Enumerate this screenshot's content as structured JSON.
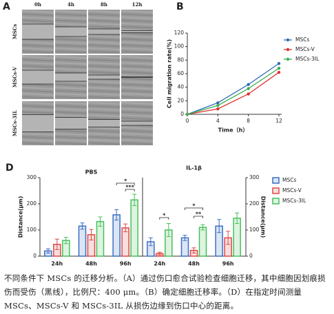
{
  "panel_a": {
    "letter": "A",
    "columns": [
      "0h",
      "4h",
      "8h",
      "12h"
    ],
    "rows": [
      "MSCs",
      "MSCs-V",
      "MSCs-3IL"
    ]
  },
  "chart_data": [
    {
      "type": "line",
      "letter": "B",
      "x_label": "Time（h）",
      "y_label": "Cell migration rate(%)",
      "x": [
        0,
        4,
        8,
        12
      ],
      "xlim": [
        0,
        12
      ],
      "xticks": [
        0,
        4,
        8,
        12
      ],
      "ylim": [
        0,
        120
      ],
      "yticks": [
        0,
        20,
        40,
        60,
        80,
        100,
        120
      ],
      "series": [
        {
          "name": "MSCs",
          "color": "#2f6db5",
          "values": [
            0,
            17,
            44,
            75
          ]
        },
        {
          "name": "MSCs-V",
          "color": "#e03030",
          "values": [
            0,
            8,
            30,
            62
          ]
        },
        {
          "name": "MSCs-3IL",
          "color": "#3cb050",
          "values": [
            0,
            13,
            38,
            68
          ]
        }
      ]
    },
    {
      "type": "grouped-bar",
      "letter": "D",
      "y_label": "Distance(μm)",
      "y2_label": "Distance(μm)",
      "ylim": [
        0,
        300
      ],
      "yticks": [
        0,
        100,
        200,
        300
      ],
      "y2lim": [
        0,
        300
      ],
      "y2ticks": [
        0,
        100,
        200,
        300
      ],
      "categories": [
        "24h",
        "48h",
        "96h"
      ],
      "series": [
        {
          "name": "MSCs",
          "color": "#3a6fc4"
        },
        {
          "name": "MSCs-V",
          "color": "#e04848"
        },
        {
          "name": "MSCs-3IL",
          "color": "#46c05a"
        }
      ],
      "panels": [
        {
          "title": "PBS",
          "values": [
            [
              20,
              115,
              158
            ],
            [
              45,
              82,
              108
            ],
            [
              60,
              132,
              215
            ]
          ],
          "errors": [
            [
              8,
              12,
              20
            ],
            [
              20,
              20,
              15
            ],
            [
              12,
              18,
              22
            ]
          ],
          "annotations": [
            "*",
            "***"
          ]
        },
        {
          "title": "IL-1β",
          "values": [
            [
              55,
              70,
              115
            ],
            [
              10,
              22,
              70
            ],
            [
              100,
              110,
              145
            ]
          ],
          "errors": [
            [
              15,
              10,
              25
            ],
            [
              5,
              10,
              25
            ],
            [
              25,
              10,
              20
            ]
          ],
          "annotations": [
            "*",
            "*",
            "**"
          ]
        }
      ]
    }
  ],
  "caption": "不同条件下 MSCs 的迁移分析。（A）通过伤口愈合试验检查细胞迁移，其中细胞因划痕损伤而受伤（黑线），比例尺：400 μm。（B）确定细胞迁移率。（D）在指定时间测量 MSCs、MSCs-V 和 MSCs-3IL 从损伤边缘到伤口中心的距离。"
}
